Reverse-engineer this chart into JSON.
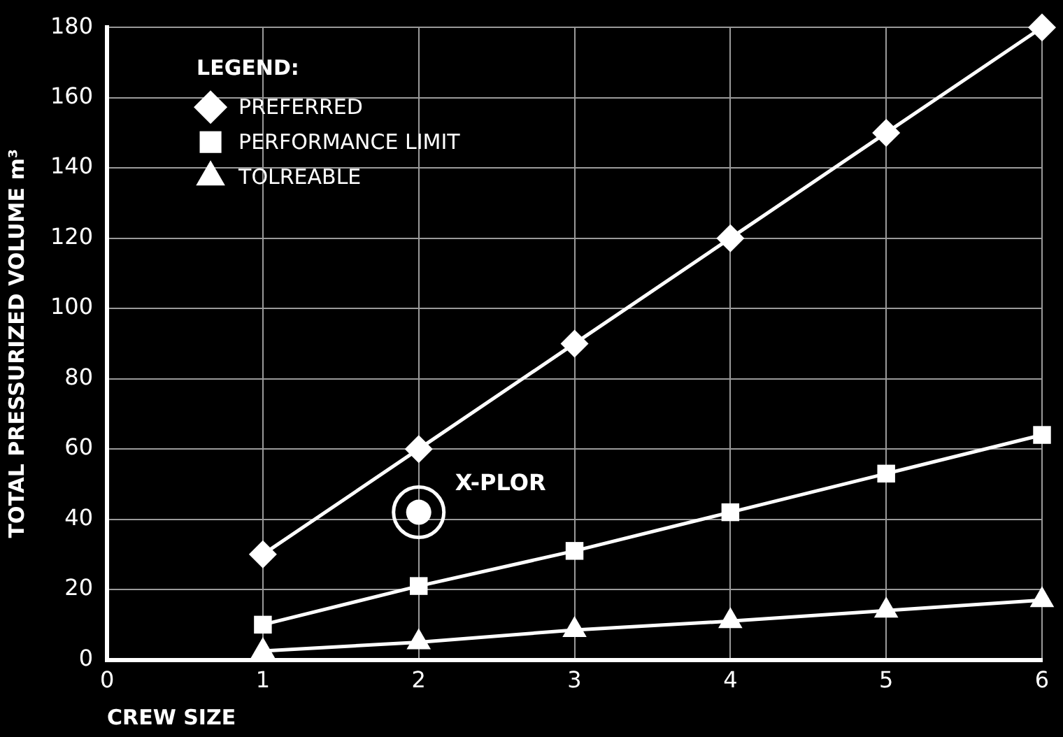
{
  "chart_data": {
    "type": "line",
    "xlabel": "CREW SIZE",
    "ylabel": "TOTAL PRESSURIZED VOLUME m³",
    "legend_title": "LEGEND:",
    "legend": "top left",
    "grid": true,
    "line_style": "solid",
    "x": [
      1,
      2,
      3,
      4,
      5,
      6
    ],
    "xlim": [
      0,
      6
    ],
    "xticks": [
      0,
      1,
      2,
      3,
      4,
      5,
      6
    ],
    "ylim": [
      0,
      180
    ],
    "yticks": [
      0,
      20,
      40,
      60,
      80,
      100,
      120,
      140,
      160,
      180
    ],
    "series": [
      {
        "name": "PREFERRED",
        "color": "#ffffff",
        "marker": "diamond",
        "values": [
          30,
          60,
          90,
          120,
          150,
          180
        ]
      },
      {
        "name": "PERFORMANCE LIMIT",
        "color": "#ffffff",
        "marker": "square",
        "values": [
          10,
          21,
          31,
          42,
          53,
          64
        ]
      },
      {
        "name": "TOLREABLE",
        "color": "#ffffff",
        "marker": "triangle",
        "values": [
          2.5,
          5,
          8.5,
          11,
          14,
          17
        ]
      },
      {
        "name": "X-PLOR",
        "type": "scatter",
        "color": "#ffffff",
        "marker": "circle",
        "x": [
          2
        ],
        "values": [
          42
        ]
      }
    ]
  }
}
